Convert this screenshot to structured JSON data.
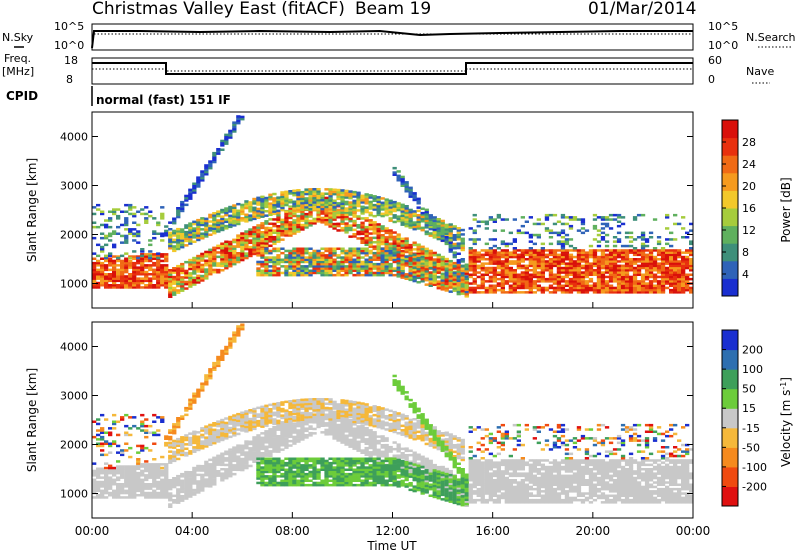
{
  "header": {
    "title": "Christmas Valley East (fitACF)",
    "beam": "Beam 19",
    "date": "01/Mar/2014"
  },
  "status_panels": {
    "nsky_label": "N.Sky",
    "nsky_ticks": [
      "10^5",
      "10^0"
    ],
    "nsearch_label": "N.Search",
    "nsearch_ticks": [
      "10^5",
      "10^0"
    ],
    "freq_label": "Freq.",
    "freq_unit": "[MHz]",
    "freq_ticks": [
      "18",
      "8"
    ],
    "nave_label": "Nave",
    "nave_ticks": [
      "60",
      "0"
    ],
    "cpid_label": "CPID",
    "cpid_value": "normal (fast) 151 IF"
  },
  "x_axis": {
    "label": "Time UT",
    "ticks": [
      "00:00",
      "04:00",
      "08:00",
      "12:00",
      "16:00",
      "20:00",
      "00:00"
    ]
  },
  "chart_data": [
    {
      "type": "heatmap",
      "name": "Power",
      "ylabel": "Slant Range [km]",
      "yticks": [
        1000,
        2000,
        3000,
        4000
      ],
      "ylim": [
        500,
        4500
      ],
      "xlim": [
        0,
        24
      ],
      "colorbar_label": "Power [dB]",
      "colorbar_ticks": [
        4,
        8,
        12,
        16,
        20,
        24,
        28
      ],
      "colorbar_colors": [
        "#1a2fd0",
        "#2f63b8",
        "#3e8f7a",
        "#5fb05e",
        "#a6cc3c",
        "#f2c82a",
        "#f59a1e",
        "#f06a15",
        "#e8300e",
        "#d9100a"
      ]
    },
    {
      "type": "heatmap",
      "name": "Velocity",
      "ylabel": "Slant Range [km]",
      "yticks": [
        1000,
        2000,
        3000,
        4000
      ],
      "ylim": [
        500,
        4500
      ],
      "xlim": [
        0,
        24
      ],
      "colorbar_label": "Velocity [m s^-1]",
      "colorbar_ticks": [
        -200,
        -100,
        -50,
        -15,
        15,
        50,
        100,
        200
      ],
      "colorbar_colors": [
        "#e01010",
        "#f04a10",
        "#f58a1e",
        "#f5b83a",
        "#c8c8c8",
        "#6ccc3a",
        "#3e9f5a",
        "#2e6fb0",
        "#1a2fd0"
      ]
    }
  ]
}
